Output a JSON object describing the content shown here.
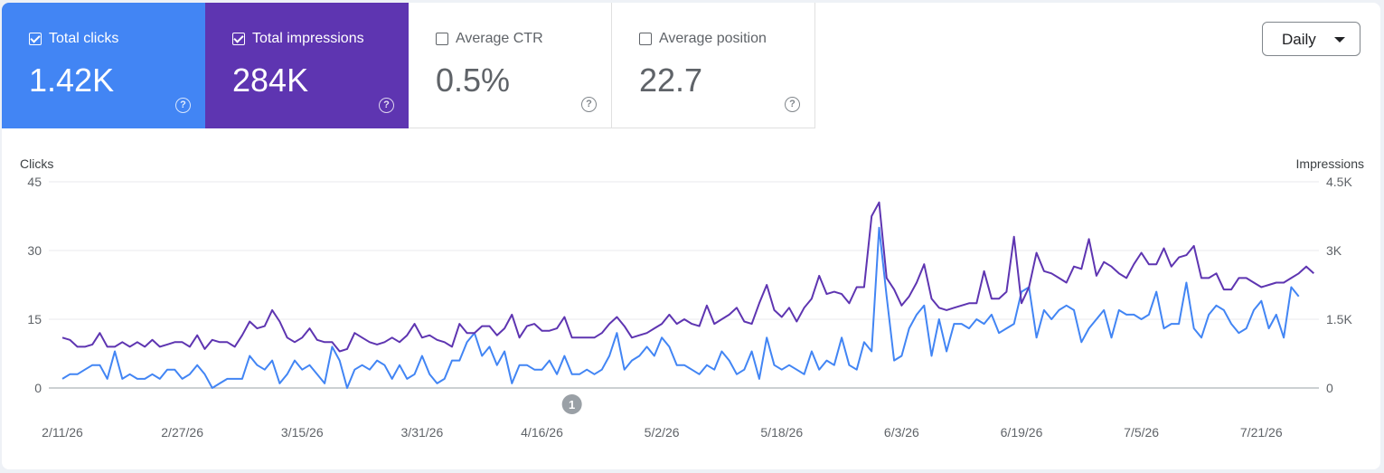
{
  "metrics": [
    {
      "label": "Total clicks",
      "value": "1.42K",
      "checked": true
    },
    {
      "label": "Total impressions",
      "value": "284K",
      "checked": true
    },
    {
      "label": "Average CTR",
      "value": "0.5%",
      "checked": false
    },
    {
      "label": "Average position",
      "value": "22.7",
      "checked": false
    }
  ],
  "help_glyph": "?",
  "granularity": {
    "label": "Daily"
  },
  "colors": {
    "clicks": "#4285f4",
    "impressions": "#5e35b1"
  },
  "chart_data": {
    "type": "line",
    "x_start": "2026-02-11",
    "x_end": "2026-07-27",
    "x_tick_labels": [
      "2/11/26",
      "2/27/26",
      "3/15/26",
      "3/31/26",
      "4/16/26",
      "5/2/26",
      "5/18/26",
      "6/3/26",
      "6/19/26",
      "7/5/26",
      "7/21/26"
    ],
    "y_left": {
      "label": "Clicks",
      "ticks": [
        "0",
        "15",
        "30",
        "45"
      ],
      "range": [
        0,
        45
      ]
    },
    "y_right": {
      "label": "Impressions",
      "ticks": [
        "0",
        "1.5K",
        "3K",
        "4.5K"
      ],
      "range": [
        0,
        4500
      ]
    },
    "annotation": {
      "label": "1",
      "date": "2026-04-20"
    },
    "grid": true,
    "series": [
      {
        "name": "Clicks",
        "axis": "left",
        "values": [
          2,
          3,
          3,
          4,
          5,
          5,
          2,
          8,
          2,
          3,
          2,
          2,
          3,
          2,
          4,
          4,
          2,
          3,
          5,
          3,
          0,
          1,
          2,
          2,
          2,
          7,
          5,
          4,
          6,
          1,
          3,
          6,
          4,
          5,
          3,
          1,
          9,
          6,
          0,
          4,
          5,
          4,
          6,
          5,
          2,
          5,
          2,
          3,
          7,
          3,
          1,
          2,
          6,
          6,
          10,
          12,
          7,
          9,
          5,
          8,
          1,
          5,
          5,
          4,
          4,
          6,
          3,
          7,
          3,
          3,
          4,
          3,
          4,
          7,
          12,
          4,
          6,
          7,
          9,
          7,
          11,
          9,
          5,
          5,
          4,
          3,
          5,
          4,
          8,
          6,
          3,
          4,
          8,
          2,
          11,
          5,
          4,
          5,
          4,
          3,
          8,
          4,
          6,
          5,
          11,
          5,
          4,
          10,
          8,
          35,
          20,
          6,
          7,
          13,
          16,
          18,
          7,
          15,
          8,
          14,
          14,
          13,
          15,
          14,
          16,
          12,
          13,
          14,
          21,
          22,
          11,
          17,
          15,
          17,
          18,
          17,
          10,
          13,
          15,
          17,
          11,
          17,
          16,
          16,
          15,
          16,
          21,
          13,
          14,
          14,
          23,
          13,
          11,
          16,
          18,
          17,
          14,
          12,
          13,
          17,
          19,
          13,
          16,
          11,
          22,
          20
        ]
      },
      {
        "name": "Impressions",
        "axis": "right",
        "values": [
          1100,
          1050,
          900,
          900,
          950,
          1200,
          900,
          900,
          1000,
          900,
          1000,
          900,
          1050,
          900,
          950,
          1000,
          1000,
          900,
          1150,
          850,
          1050,
          1000,
          1000,
          900,
          1150,
          1450,
          1300,
          1350,
          1700,
          1450,
          1100,
          1000,
          1100,
          1300,
          1050,
          1000,
          1000,
          800,
          850,
          1200,
          1100,
          1000,
          950,
          1000,
          1100,
          1000,
          1150,
          1400,
          1100,
          1150,
          1050,
          1000,
          900,
          1400,
          1200,
          1200,
          1350,
          1350,
          1150,
          1300,
          1600,
          1100,
          1350,
          1400,
          1250,
          1250,
          1300,
          1550,
          1100,
          1100,
          1100,
          1100,
          1200,
          1400,
          1550,
          1350,
          1100,
          1150,
          1200,
          1300,
          1400,
          1600,
          1400,
          1500,
          1400,
          1350,
          1800,
          1400,
          1500,
          1600,
          1750,
          1450,
          1400,
          1850,
          2250,
          1700,
          1550,
          1750,
          1450,
          1750,
          1950,
          2450,
          2050,
          2100,
          2050,
          1850,
          2200,
          2200,
          3750,
          4050,
          2400,
          2150,
          1800,
          2000,
          2300,
          2700,
          1950,
          1750,
          1700,
          1750,
          1800,
          1850,
          1850,
          2550,
          1950,
          1950,
          2100,
          3300,
          1850,
          2200,
          2950,
          2550,
          2500,
          2400,
          2300,
          2650,
          2600,
          3250,
          2450,
          2750,
          2650,
          2500,
          2400,
          2700,
          2950,
          2700,
          2700,
          3050,
          2650,
          2850,
          2900,
          3100,
          2400,
          2400,
          2500,
          2150,
          2150,
          2400,
          2400,
          2300,
          2200,
          2250,
          2300,
          2300,
          2400,
          2500,
          2650,
          2500
        ]
      }
    ]
  }
}
